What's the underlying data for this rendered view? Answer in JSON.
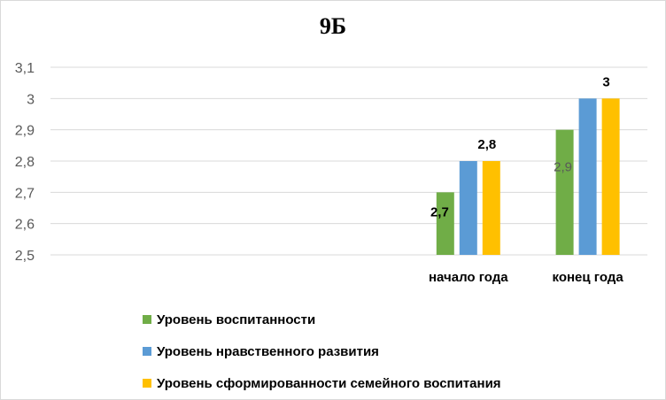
{
  "chart_data": {
    "type": "bar",
    "title": "9Б",
    "categories": [
      "",
      "",
      "",
      "начало года",
      "конец года"
    ],
    "series": [
      {
        "name": "Уровень воспитанности",
        "color": "#70ad47",
        "values": [
          null,
          null,
          null,
          2.7,
          2.9
        ]
      },
      {
        "name": "Уровень нравственного развития",
        "color": "#5b9bd5",
        "values": [
          null,
          null,
          null,
          2.8,
          3.0
        ]
      },
      {
        "name": "Уровень сформированности семейного воспитания",
        "color": "#ffc000",
        "values": [
          null,
          null,
          null,
          2.8,
          3.0
        ]
      }
    ],
    "data_labels": [
      {
        "series": 0,
        "category": 3,
        "text": "2,7",
        "color": "#000000",
        "bold": true
      },
      {
        "series": 0,
        "category": 4,
        "text": "2,9",
        "color": "#595959",
        "bold": false
      },
      {
        "series": 2,
        "category": 3,
        "text": "2,8",
        "color": "#000000",
        "bold": true
      },
      {
        "series": 2,
        "category": 4,
        "text": "3",
        "color": "#000000",
        "bold": true
      }
    ],
    "ylim": [
      2.5,
      3.1
    ],
    "yticks": [
      "2,5",
      "2,6",
      "2,7",
      "2,8",
      "2,9",
      "3",
      "3,1"
    ],
    "grid": true,
    "legend": "bottom"
  }
}
